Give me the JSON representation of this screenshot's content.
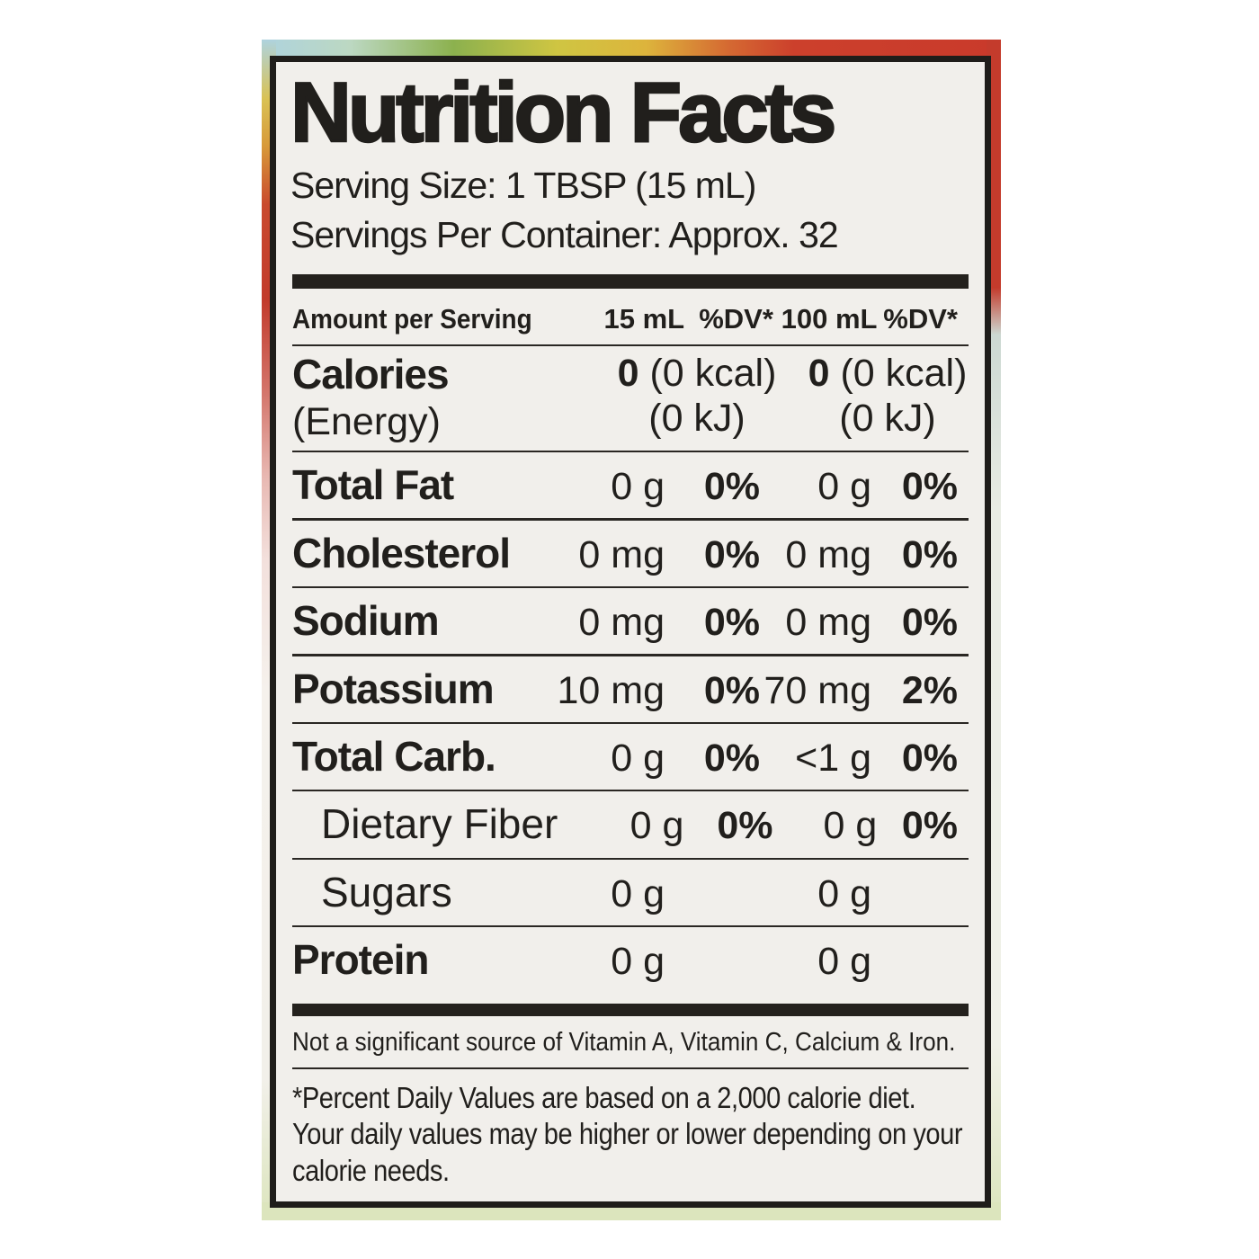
{
  "colors": {
    "ink": "#211f1c",
    "label_background": "#f1efeb",
    "page_background": "#ffffff",
    "packaging_red": "#c43b2c",
    "packaging_green_strip": "#dce5bd",
    "packaging_blue": "#aed3de"
  },
  "nutrition_label": {
    "title": "Nutrition Facts",
    "serving_size": "Serving Size: 1 TBSP (15 mL)",
    "servings_per_container": "Servings Per Container: Approx. 32",
    "columns": {
      "amount_per_serving": "Amount per Serving",
      "per_serving": "15 mL",
      "dv_per_serving": "%DV*",
      "per_100": "100 mL",
      "dv_per_100": "%DV*"
    },
    "calories": {
      "name": "Calories",
      "qualifier": "(Energy)",
      "per_serving": {
        "value": "0",
        "kcal": "(0 kcal)",
        "kj": "(0 kJ)"
      },
      "per_100": {
        "value": "0",
        "kcal": "(0 kcal)",
        "kj": "(0 kJ)"
      }
    },
    "rows": [
      {
        "name": "Total Fat",
        "v1": "0 g",
        "dv1": "0%",
        "v2": "0 g",
        "dv2": "0%"
      },
      {
        "name": "Cholesterol",
        "v1": "0 mg",
        "dv1": "0%",
        "v2": "0 mg",
        "dv2": "0%"
      },
      {
        "name": "Sodium",
        "v1": "0 mg",
        "dv1": "0%",
        "v2": "0 mg",
        "dv2": "0%"
      },
      {
        "name": "Potassium",
        "v1": "10 mg",
        "dv1": "0%",
        "v2": "70 mg",
        "dv2": "2%"
      },
      {
        "name": "Total Carb.",
        "v1": "0 g",
        "dv1": "0%",
        "v2": "<1 g",
        "dv2": "0%"
      },
      {
        "name": "Dietary Fiber",
        "v1": "0 g",
        "dv1": "0%",
        "v2": "0 g",
        "dv2": "0%"
      },
      {
        "name": "Sugars",
        "v1": "0 g",
        "dv1": "",
        "v2": "0 g",
        "dv2": ""
      },
      {
        "name": "Protein",
        "v1": "0 g",
        "dv1": "",
        "v2": "0 g",
        "dv2": ""
      }
    ],
    "not_significant": "Not a significant source of Vitamin A, Vitamin C, Calcium & Iron.",
    "footnote": "*Percent Daily Values are based on a 2,000 calorie diet. Your daily values may be higher or lower depending on your calorie needs."
  }
}
